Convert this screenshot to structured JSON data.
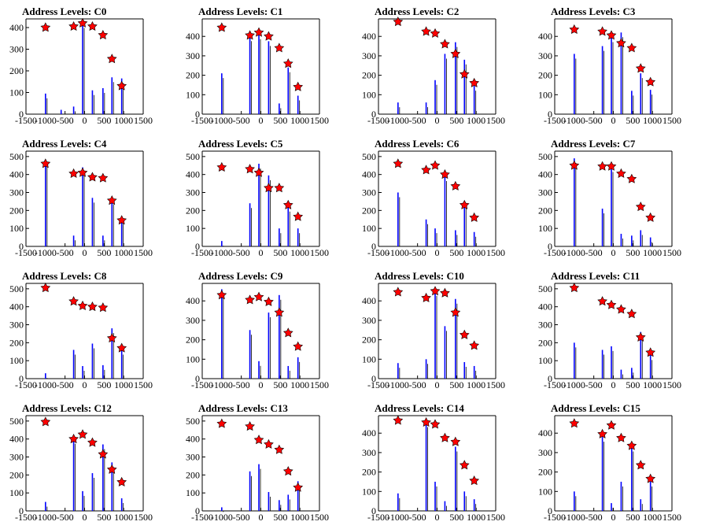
{
  "chart_data": {
    "type": "bar",
    "layout": {
      "rows": 4,
      "cols": 4
    },
    "xlim": [
      -1500,
      1500
    ],
    "xticks": [
      -1500,
      -1000,
      -500,
      0,
      500,
      1000,
      1500
    ],
    "colors": {
      "bar": "#0000ff",
      "marker": "#ff0000",
      "marker_edge": "#000000",
      "axis": "#000000"
    },
    "panels": [
      {
        "title": "Address Levels: C0",
        "ylim": [
          0,
          440
        ],
        "yticks": [
          0,
          100,
          200,
          300,
          400
        ],
        "x": [
          -1000,
          -600,
          -280,
          -50,
          200,
          470,
          700,
          950
        ],
        "values": [
          95,
          20,
          35,
          420,
          110,
          120,
          170,
          165
        ],
        "markers": [
          {
            "x": -1000,
            "y": 400
          },
          {
            "x": -280,
            "y": 405
          },
          {
            "x": -50,
            "y": 420
          },
          {
            "x": 200,
            "y": 405
          },
          {
            "x": 470,
            "y": 365
          },
          {
            "x": 700,
            "y": 255
          },
          {
            "x": 950,
            "y": 130
          }
        ]
      },
      {
        "title": "Address Levels: C1",
        "ylim": [
          0,
          490
        ],
        "yticks": [
          0,
          100,
          200,
          300,
          400
        ],
        "x": [
          -1000,
          -280,
          -50,
          200,
          470,
          700,
          950
        ],
        "values": [
          210,
          400,
          410,
          375,
          55,
          240,
          95
        ],
        "markers": [
          {
            "x": -1000,
            "y": 445
          },
          {
            "x": -280,
            "y": 405
          },
          {
            "x": -50,
            "y": 420
          },
          {
            "x": 200,
            "y": 400
          },
          {
            "x": 470,
            "y": 340
          },
          {
            "x": 700,
            "y": 260
          },
          {
            "x": 950,
            "y": 140
          }
        ]
      },
      {
        "title": "Address Levels: C2",
        "ylim": [
          0,
          490
        ],
        "yticks": [
          0,
          100,
          200,
          300,
          400
        ],
        "x": [
          -1000,
          -280,
          -50,
          200,
          470,
          700,
          950
        ],
        "values": [
          60,
          60,
          175,
          310,
          370,
          280,
          145
        ],
        "markers": [
          {
            "x": -1000,
            "y": 475
          },
          {
            "x": -280,
            "y": 425
          },
          {
            "x": -50,
            "y": 415
          },
          {
            "x": 200,
            "y": 360
          },
          {
            "x": 470,
            "y": 310
          },
          {
            "x": 700,
            "y": 205
          },
          {
            "x": 950,
            "y": 160
          }
        ]
      },
      {
        "title": "Address Levels: C3",
        "ylim": [
          0,
          490
        ],
        "yticks": [
          0,
          100,
          200,
          300,
          400
        ],
        "x": [
          -1000,
          -280,
          -50,
          200,
          470,
          700,
          950
        ],
        "values": [
          310,
          350,
          395,
          420,
          120,
          210,
          125
        ],
        "markers": [
          {
            "x": -1000,
            "y": 435
          },
          {
            "x": -280,
            "y": 425
          },
          {
            "x": -50,
            "y": 405
          },
          {
            "x": 200,
            "y": 365
          },
          {
            "x": 470,
            "y": 340
          },
          {
            "x": 700,
            "y": 235
          },
          {
            "x": 950,
            "y": 165
          }
        ]
      },
      {
        "title": "Address Levels: C4",
        "ylim": [
          0,
          530
        ],
        "yticks": [
          0,
          100,
          200,
          300,
          400,
          500
        ],
        "x": [
          -1000,
          -280,
          -50,
          200,
          470,
          700,
          950
        ],
        "values": [
          470,
          60,
          440,
          270,
          60,
          260,
          160
        ],
        "markers": [
          {
            "x": -1000,
            "y": 460
          },
          {
            "x": -280,
            "y": 405
          },
          {
            "x": -50,
            "y": 410
          },
          {
            "x": 200,
            "y": 385
          },
          {
            "x": 470,
            "y": 380
          },
          {
            "x": 700,
            "y": 255
          },
          {
            "x": 950,
            "y": 145
          }
        ]
      },
      {
        "title": "Address Levels: C5",
        "ylim": [
          0,
          530
        ],
        "yticks": [
          0,
          100,
          200,
          300,
          400,
          500
        ],
        "x": [
          -1000,
          -280,
          -50,
          200,
          470,
          700,
          950
        ],
        "values": [
          30,
          240,
          460,
          395,
          100,
          220,
          100
        ],
        "markers": [
          {
            "x": -1000,
            "y": 440
          },
          {
            "x": -280,
            "y": 430
          },
          {
            "x": -50,
            "y": 410
          },
          {
            "x": 200,
            "y": 325
          },
          {
            "x": 470,
            "y": 325
          },
          {
            "x": 700,
            "y": 230
          },
          {
            "x": 950,
            "y": 165
          }
        ]
      },
      {
        "title": "Address Levels: C6",
        "ylim": [
          0,
          530
        ],
        "yticks": [
          0,
          100,
          200,
          300,
          400,
          500
        ],
        "x": [
          -1000,
          -280,
          -50,
          200,
          470,
          700,
          950
        ],
        "values": [
          300,
          150,
          100,
          390,
          90,
          240,
          80
        ],
        "markers": [
          {
            "x": -1000,
            "y": 460
          },
          {
            "x": -280,
            "y": 425
          },
          {
            "x": -50,
            "y": 450
          },
          {
            "x": 200,
            "y": 400
          },
          {
            "x": 470,
            "y": 335
          },
          {
            "x": 700,
            "y": 230
          },
          {
            "x": 950,
            "y": 160
          }
        ]
      },
      {
        "title": "Address Levels: C7",
        "ylim": [
          0,
          530
        ],
        "yticks": [
          0,
          100,
          200,
          300,
          400,
          500
        ],
        "x": [
          -1000,
          -280,
          -50,
          200,
          470,
          700,
          950
        ],
        "values": [
          490,
          210,
          440,
          70,
          60,
          90,
          50
        ],
        "markers": [
          {
            "x": -1000,
            "y": 450
          },
          {
            "x": -280,
            "y": 445
          },
          {
            "x": -50,
            "y": 445
          },
          {
            "x": 200,
            "y": 405
          },
          {
            "x": 470,
            "y": 375
          },
          {
            "x": 700,
            "y": 220
          },
          {
            "x": 950,
            "y": 160
          }
        ]
      },
      {
        "title": "Address Levels: C8",
        "ylim": [
          0,
          530
        ],
        "yticks": [
          0,
          100,
          200,
          300,
          400,
          500
        ],
        "x": [
          -1000,
          -280,
          -50,
          200,
          470,
          700,
          950
        ],
        "values": [
          30,
          160,
          70,
          195,
          75,
          280,
          160
        ],
        "markers": [
          {
            "x": -1000,
            "y": 505
          },
          {
            "x": -280,
            "y": 430
          },
          {
            "x": -50,
            "y": 405
          },
          {
            "x": 200,
            "y": 400
          },
          {
            "x": 470,
            "y": 395
          },
          {
            "x": 700,
            "y": 225
          },
          {
            "x": 950,
            "y": 170
          }
        ]
      },
      {
        "title": "Address Levels: C9",
        "ylim": [
          0,
          490
        ],
        "yticks": [
          0,
          100,
          200,
          300,
          400
        ],
        "x": [
          -1000,
          -280,
          -50,
          200,
          470,
          700,
          950
        ],
        "values": [
          460,
          250,
          90,
          340,
          430,
          65,
          110
        ],
        "markers": [
          {
            "x": -1000,
            "y": 430
          },
          {
            "x": -280,
            "y": 405
          },
          {
            "x": -50,
            "y": 420
          },
          {
            "x": 200,
            "y": 395
          },
          {
            "x": 470,
            "y": 340
          },
          {
            "x": 700,
            "y": 235
          },
          {
            "x": 950,
            "y": 165
          }
        ]
      },
      {
        "title": "Address Levels: C10",
        "ylim": [
          0,
          490
        ],
        "yticks": [
          0,
          100,
          200,
          300,
          400
        ],
        "x": [
          -1000,
          -280,
          -50,
          200,
          470,
          700,
          950
        ],
        "values": [
          80,
          100,
          450,
          270,
          410,
          85,
          65
        ],
        "markers": [
          {
            "x": -1000,
            "y": 445
          },
          {
            "x": -280,
            "y": 415
          },
          {
            "x": -50,
            "y": 450
          },
          {
            "x": 200,
            "y": 440
          },
          {
            "x": 470,
            "y": 340
          },
          {
            "x": 700,
            "y": 225
          },
          {
            "x": 950,
            "y": 170
          }
        ]
      },
      {
        "title": "Address Levels: C11",
        "ylim": [
          0,
          530
        ],
        "yticks": [
          0,
          100,
          200,
          300,
          400,
          500
        ],
        "x": [
          -1000,
          -280,
          -50,
          200,
          470,
          700,
          950
        ],
        "values": [
          200,
          160,
          180,
          50,
          60,
          260,
          130
        ],
        "markers": [
          {
            "x": -1000,
            "y": 505
          },
          {
            "x": -280,
            "y": 430
          },
          {
            "x": -50,
            "y": 410
          },
          {
            "x": 200,
            "y": 385
          },
          {
            "x": 470,
            "y": 360
          },
          {
            "x": 700,
            "y": 230
          },
          {
            "x": 950,
            "y": 145
          }
        ]
      },
      {
        "title": "Address Levels: C12",
        "ylim": [
          0,
          530
        ],
        "yticks": [
          0,
          100,
          200,
          300,
          400,
          500
        ],
        "x": [
          -1000,
          -280,
          -50,
          200,
          470,
          700,
          950
        ],
        "values": [
          50,
          400,
          110,
          210,
          370,
          270,
          70
        ],
        "markers": [
          {
            "x": -1000,
            "y": 495
          },
          {
            "x": -280,
            "y": 400
          },
          {
            "x": -50,
            "y": 425
          },
          {
            "x": 200,
            "y": 380
          },
          {
            "x": 470,
            "y": 315
          },
          {
            "x": 700,
            "y": 230
          },
          {
            "x": 950,
            "y": 160
          }
        ]
      },
      {
        "title": "Address Levels: C13",
        "ylim": [
          0,
          530
        ],
        "yticks": [
          0,
          100,
          200,
          300,
          400,
          500
        ],
        "x": [
          -1000,
          -280,
          -50,
          200,
          470,
          700,
          950
        ],
        "values": [
          20,
          220,
          260,
          105,
          60,
          90,
          165
        ],
        "markers": [
          {
            "x": -1000,
            "y": 485
          },
          {
            "x": -280,
            "y": 470
          },
          {
            "x": -50,
            "y": 395
          },
          {
            "x": 200,
            "y": 370
          },
          {
            "x": 470,
            "y": 340
          },
          {
            "x": 700,
            "y": 220
          },
          {
            "x": 950,
            "y": 130
          }
        ]
      },
      {
        "title": "Address Levels: C14",
        "ylim": [
          0,
          490
        ],
        "yticks": [
          0,
          100,
          200,
          300,
          400
        ],
        "x": [
          -1000,
          -280,
          -50,
          200,
          470,
          700,
          950
        ],
        "values": [
          90,
          455,
          150,
          50,
          330,
          100,
          60
        ],
        "markers": [
          {
            "x": -1000,
            "y": 465
          },
          {
            "x": -280,
            "y": 455
          },
          {
            "x": -50,
            "y": 445
          },
          {
            "x": 200,
            "y": 375
          },
          {
            "x": 470,
            "y": 355
          },
          {
            "x": 700,
            "y": 235
          },
          {
            "x": 950,
            "y": 155
          }
        ]
      },
      {
        "title": "Address Levels: C15",
        "ylim": [
          0,
          490
        ],
        "yticks": [
          0,
          100,
          200,
          300,
          400
        ],
        "x": [
          -1000,
          -280,
          -50,
          200,
          470,
          700,
          950
        ],
        "values": [
          100,
          380,
          40,
          150,
          330,
          60,
          150
        ],
        "markers": [
          {
            "x": -1000,
            "y": 450
          },
          {
            "x": -280,
            "y": 395
          },
          {
            "x": -50,
            "y": 440
          },
          {
            "x": 200,
            "y": 375
          },
          {
            "x": 470,
            "y": 335
          },
          {
            "x": 700,
            "y": 235
          },
          {
            "x": 950,
            "y": 165
          }
        ]
      }
    ]
  }
}
